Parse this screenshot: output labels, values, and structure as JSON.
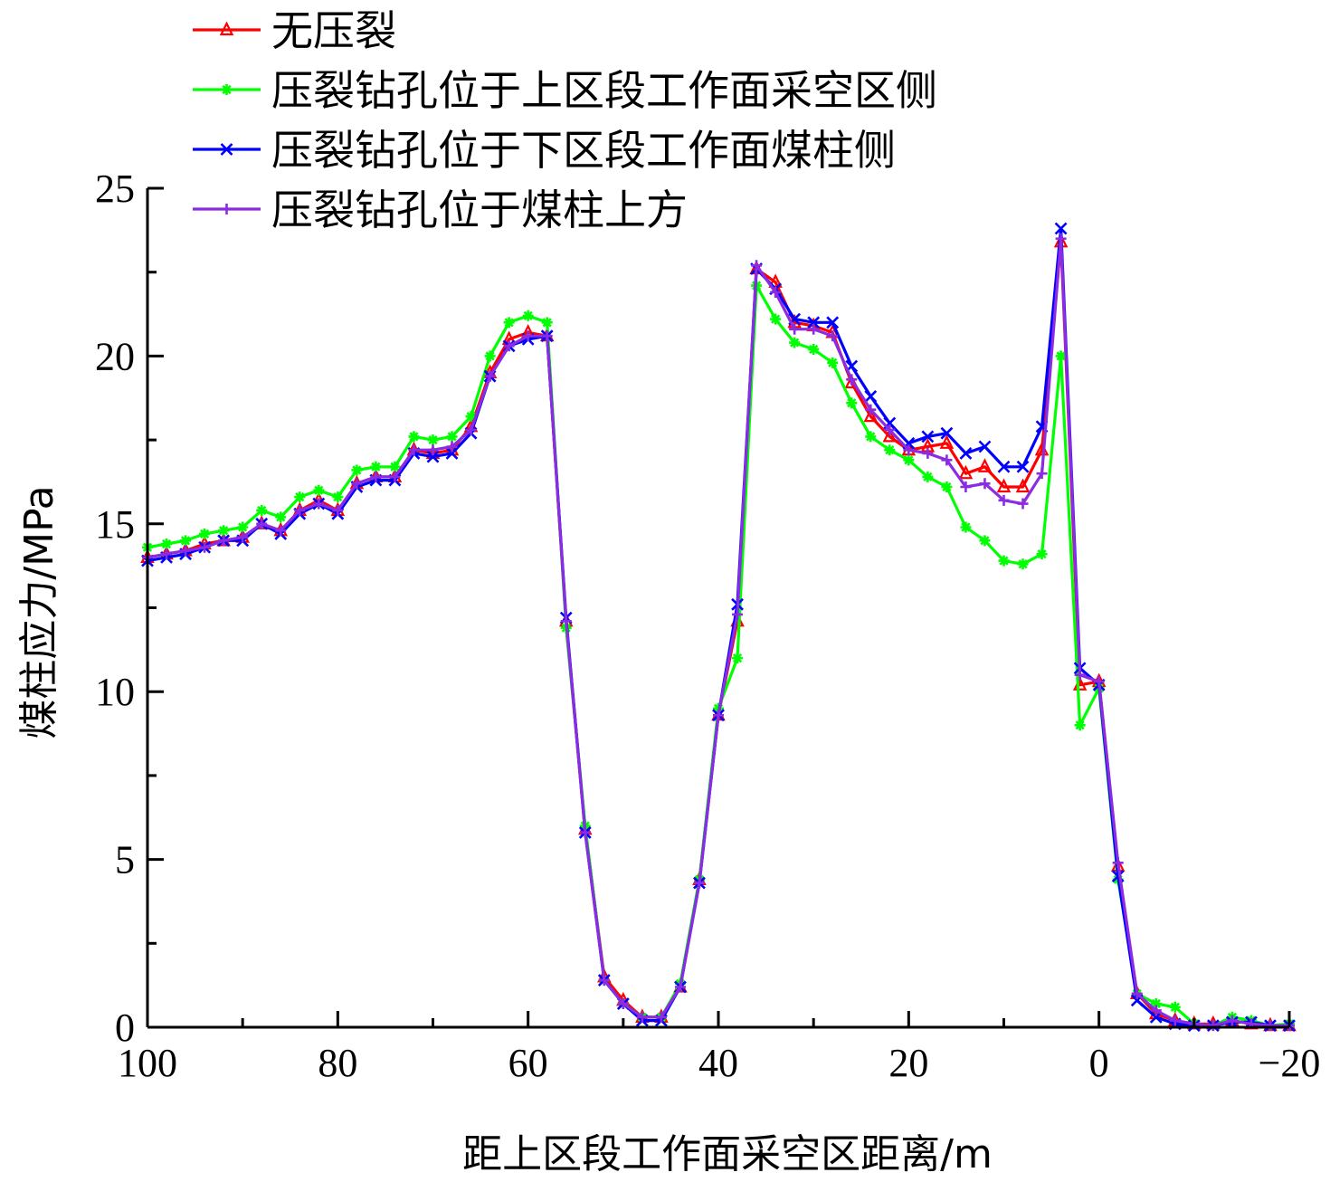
{
  "chart_data": {
    "type": "line",
    "xlabel": "距上区段工作面采空区距离/m",
    "ylabel": "煤柱应力/MPa",
    "xlim": [
      100,
      -20
    ],
    "ylim": [
      0,
      25
    ],
    "x_ticks": [
      100,
      80,
      60,
      40,
      20,
      0,
      -20
    ],
    "x_tick_labels": [
      "100",
      "80",
      "60",
      "40",
      "20",
      "0",
      "−20"
    ],
    "y_ticks": [
      0,
      5,
      10,
      15,
      20,
      25
    ],
    "y_tick_labels": [
      "0",
      "5",
      "10",
      "15",
      "20",
      "25"
    ],
    "grid": false,
    "legend_position": "top-left",
    "x": [
      100,
      98,
      96,
      94,
      92,
      90,
      88,
      86,
      84,
      82,
      80,
      78,
      76,
      74,
      72,
      70,
      68,
      66,
      64,
      62,
      60,
      58,
      56,
      54,
      52,
      50,
      48,
      46,
      44,
      42,
      40,
      38,
      36,
      34,
      32,
      30,
      28,
      26,
      24,
      22,
      20,
      18,
      16,
      14,
      12,
      10,
      8,
      6,
      4,
      2,
      0,
      -2,
      -4,
      -6,
      -8,
      -10,
      -12,
      -14,
      -16,
      -18,
      -20
    ],
    "series": [
      {
        "name": "无压裂",
        "color": "#ff0000",
        "marker": "triangle",
        "values": [
          14.0,
          14.1,
          14.2,
          14.4,
          14.5,
          14.6,
          15.0,
          14.8,
          15.4,
          15.7,
          15.4,
          16.2,
          16.4,
          16.4,
          17.2,
          17.1,
          17.2,
          17.9,
          19.5,
          20.5,
          20.7,
          20.6,
          12.1,
          5.9,
          1.5,
          0.8,
          0.3,
          0.3,
          1.2,
          4.4,
          9.3,
          12.1,
          22.6,
          22.2,
          21.0,
          20.9,
          20.7,
          19.2,
          18.2,
          17.6,
          17.2,
          17.3,
          17.4,
          16.5,
          16.7,
          16.1,
          16.1,
          17.2,
          23.4,
          10.2,
          10.3,
          4.8,
          1.0,
          0.4,
          0.2,
          0.1,
          0.1,
          0.2,
          0.1,
          0.05,
          0.05
        ]
      },
      {
        "name": "压裂钻孔位于上区段工作面采空区侧",
        "color": "#00ff00",
        "marker": "asterisk",
        "values": [
          14.3,
          14.4,
          14.5,
          14.7,
          14.8,
          14.9,
          15.4,
          15.2,
          15.8,
          16.0,
          15.8,
          16.6,
          16.7,
          16.7,
          17.6,
          17.5,
          17.6,
          18.2,
          20.0,
          21.0,
          21.2,
          21.0,
          11.9,
          6.0,
          1.4,
          0.7,
          0.3,
          0.3,
          1.3,
          4.4,
          9.5,
          11.0,
          22.1,
          21.1,
          20.4,
          20.2,
          19.8,
          18.6,
          17.6,
          17.2,
          16.9,
          16.4,
          16.1,
          14.9,
          14.5,
          13.9,
          13.8,
          14.1,
          20.0,
          9.0,
          10.1,
          4.4,
          1.0,
          0.7,
          0.6,
          0.1,
          0.05,
          0.3,
          0.2,
          0.05,
          0.1
        ]
      },
      {
        "name": "压裂钻孔位于下区段工作面煤柱侧",
        "color": "#0000ff",
        "marker": "x",
        "values": [
          13.9,
          14.0,
          14.1,
          14.3,
          14.5,
          14.5,
          15.0,
          14.7,
          15.3,
          15.6,
          15.3,
          16.1,
          16.3,
          16.3,
          17.1,
          17.0,
          17.1,
          17.7,
          19.4,
          20.3,
          20.5,
          20.6,
          12.2,
          5.8,
          1.4,
          0.7,
          0.2,
          0.2,
          1.2,
          4.3,
          9.3,
          12.6,
          22.6,
          22.0,
          21.1,
          21.0,
          21.0,
          19.7,
          18.8,
          18.0,
          17.4,
          17.6,
          17.7,
          17.1,
          17.3,
          16.7,
          16.7,
          17.9,
          23.8,
          10.7,
          10.2,
          4.5,
          0.8,
          0.3,
          0.1,
          0.05,
          0.05,
          0.15,
          0.15,
          0.05,
          0.05
        ]
      },
      {
        "name": "压裂钻孔位于煤柱上方",
        "color": "#8b2be2",
        "marker": "plus",
        "values": [
          14.0,
          14.1,
          14.2,
          14.3,
          14.5,
          14.6,
          15.0,
          14.8,
          15.4,
          15.6,
          15.4,
          16.2,
          16.4,
          16.4,
          17.2,
          17.2,
          17.3,
          17.8,
          19.4,
          20.3,
          20.6,
          20.6,
          12.1,
          5.8,
          1.4,
          0.7,
          0.3,
          0.3,
          1.2,
          4.3,
          9.3,
          12.3,
          22.7,
          21.9,
          20.8,
          20.8,
          20.6,
          19.3,
          18.4,
          17.8,
          17.2,
          17.1,
          16.9,
          16.1,
          16.2,
          15.7,
          15.6,
          16.5,
          23.5,
          10.5,
          10.3,
          4.9,
          1.0,
          0.5,
          0.2,
          0.1,
          0.05,
          0.2,
          0.1,
          0.05,
          0.05
        ]
      }
    ]
  }
}
